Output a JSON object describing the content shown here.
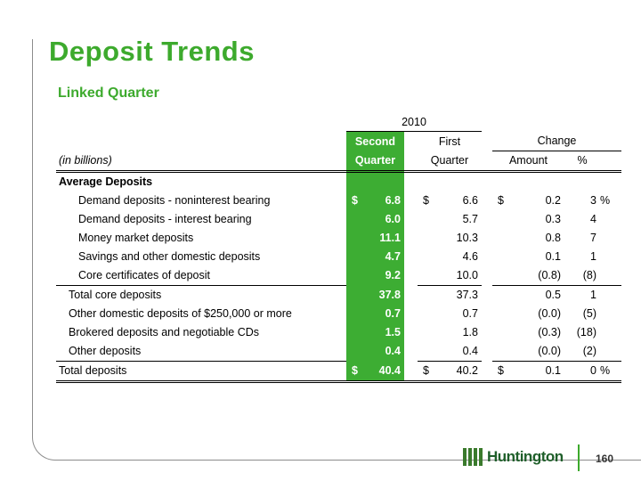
{
  "title": "Deposit Trends",
  "subtitle": "Linked Quarter",
  "table": {
    "year_label": "2010",
    "header_second_line1": "Second",
    "header_second_line2": "Quarter",
    "header_first_line1": "First",
    "header_first_line2": "Quarter",
    "change_label": "Change",
    "amount_label": "Amount",
    "pct_label": "%",
    "units_label": "(in billions)",
    "section_label": "Average Deposits",
    "rows": [
      {
        "label": "Demand deposits - noninterest bearing",
        "sq": "6.8",
        "fq": "6.6",
        "amt": "0.2",
        "pct": "3",
        "sfx": "%",
        "dollar": "$"
      },
      {
        "label": "Demand deposits - interest bearing",
        "sq": "6.0",
        "fq": "5.7",
        "amt": "0.3",
        "pct": "4"
      },
      {
        "label": "Money market deposits",
        "sq": "11.1",
        "fq": "10.3",
        "amt": "0.8",
        "pct": "7"
      },
      {
        "label": "Savings and other domestic deposits",
        "sq": "4.7",
        "fq": "4.6",
        "amt": "0.1",
        "pct": "1"
      },
      {
        "label": "Core certificates of deposit",
        "sq": "9.2",
        "fq": "10.0",
        "amt": "(0.8)",
        "pct": "(8)"
      },
      {
        "label": "Total core deposits",
        "sq": "37.8",
        "fq": "37.3",
        "amt": "0.5",
        "pct": "1"
      },
      {
        "label": "Other domestic deposits of $250,000 or more",
        "sq": "0.7",
        "fq": "0.7",
        "amt": "(0.0)",
        "pct": "(5)"
      },
      {
        "label": "Brokered deposits and negotiable CDs",
        "sq": "1.5",
        "fq": "1.8",
        "amt": "(0.3)",
        "pct": "(18)"
      },
      {
        "label": "Other deposits",
        "sq": "0.4",
        "fq": "0.4",
        "amt": "(0.0)",
        "pct": "(2)"
      },
      {
        "label": "Total deposits",
        "sq": "40.4",
        "fq": "40.2",
        "amt": "0.1",
        "pct": "0",
        "sfx": "%",
        "dollar": "$"
      }
    ]
  },
  "logo_text": "Huntington",
  "page_number": "160"
}
